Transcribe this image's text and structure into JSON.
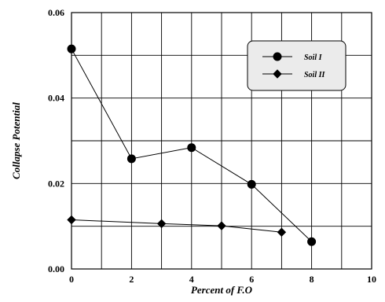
{
  "chart_data": {
    "type": "line",
    "title": "",
    "xlabel": "Percent of F.O",
    "ylabel": "Collapse Potential",
    "xlim": [
      0,
      10
    ],
    "ylim": [
      0,
      0.06
    ],
    "x_ticks": [
      "0",
      "2",
      "4",
      "6",
      "8",
      "10"
    ],
    "y_ticks": [
      "0.00",
      "0.02",
      "0.04",
      "0.06"
    ],
    "grid": true,
    "legend_position": "top-right",
    "series": [
      {
        "name": "Soil I",
        "marker": "circle",
        "color": "#000000",
        "points": [
          [
            0,
            0.0515
          ],
          [
            2,
            0.0258
          ],
          [
            4,
            0.0284
          ],
          [
            6,
            0.0198
          ],
          [
            8,
            0.0064
          ]
        ]
      },
      {
        "name": "Soil II",
        "marker": "diamond",
        "color": "#000000",
        "points": [
          [
            0,
            0.0115
          ],
          [
            3,
            0.0106
          ],
          [
            5,
            0.0101
          ],
          [
            7,
            0.0086
          ]
        ]
      }
    ]
  }
}
